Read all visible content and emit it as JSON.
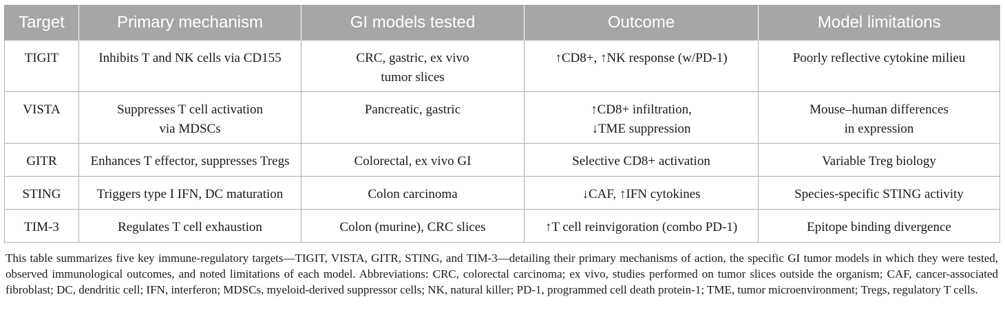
{
  "table": {
    "headers": [
      "Target",
      "Primary mechanism",
      "GI models tested",
      "Outcome",
      "Model limitations"
    ],
    "rows": [
      {
        "target": "TIGIT",
        "mechanism": [
          "Inhibits T and NK cells via CD155"
        ],
        "models": [
          "CRC, gastric, ex vivo",
          "tumor slices"
        ],
        "outcome": [
          "↑CD8+, ↑NK response (w/PD-1)"
        ],
        "limitations": [
          "Poorly reflective cytokine milieu"
        ]
      },
      {
        "target": "VISTA",
        "mechanism": [
          "Suppresses T cell activation",
          "via MDSCs"
        ],
        "models": [
          "Pancreatic, gastric"
        ],
        "outcome": [
          "↑CD8+ infiltration,",
          "↓TME suppression"
        ],
        "limitations": [
          "Mouse–human differences",
          "in expression"
        ]
      },
      {
        "target": "GITR",
        "mechanism": [
          "Enhances T effector, suppresses Tregs"
        ],
        "models": [
          "Colorectal, ex vivo GI"
        ],
        "outcome": [
          "Selective CD8+ activation"
        ],
        "limitations": [
          "Variable Treg biology"
        ]
      },
      {
        "target": "STING",
        "mechanism": [
          "Triggers type I IFN, DC maturation"
        ],
        "models": [
          "Colon carcinoma"
        ],
        "outcome": [
          "↓CAF, ↑IFN cytokines"
        ],
        "limitations": [
          "Species-specific STING activity"
        ]
      },
      {
        "target": "TIM-3",
        "mechanism": [
          "Regulates T cell exhaustion"
        ],
        "models": [
          "Colon (murine), CRC slices"
        ],
        "outcome": [
          "↑T cell reinvigoration (combo PD-1)"
        ],
        "limitations": [
          "Epitope binding divergence"
        ]
      }
    ]
  },
  "caption": "This table summarizes five key immune-regulatory targets—TIGIT, VISTA, GITR, STING, and TIM-3—detailing their primary mechanisms of action, the specific GI tumor models in which they were tested, observed immunological outcomes, and noted limitations of each model. Abbreviations: CRC, colorectal carcinoma; ex vivo, studies performed on tumor slices outside the organism; CAF, cancer-associated fibroblast; DC, dendritic cell; IFN, interferon; MDSCs, myeloid-derived suppressor cells; NK, natural killer; PD-1, programmed cell death protein-1; TME, tumor microenvironment; Tregs, regulatory T cells."
}
